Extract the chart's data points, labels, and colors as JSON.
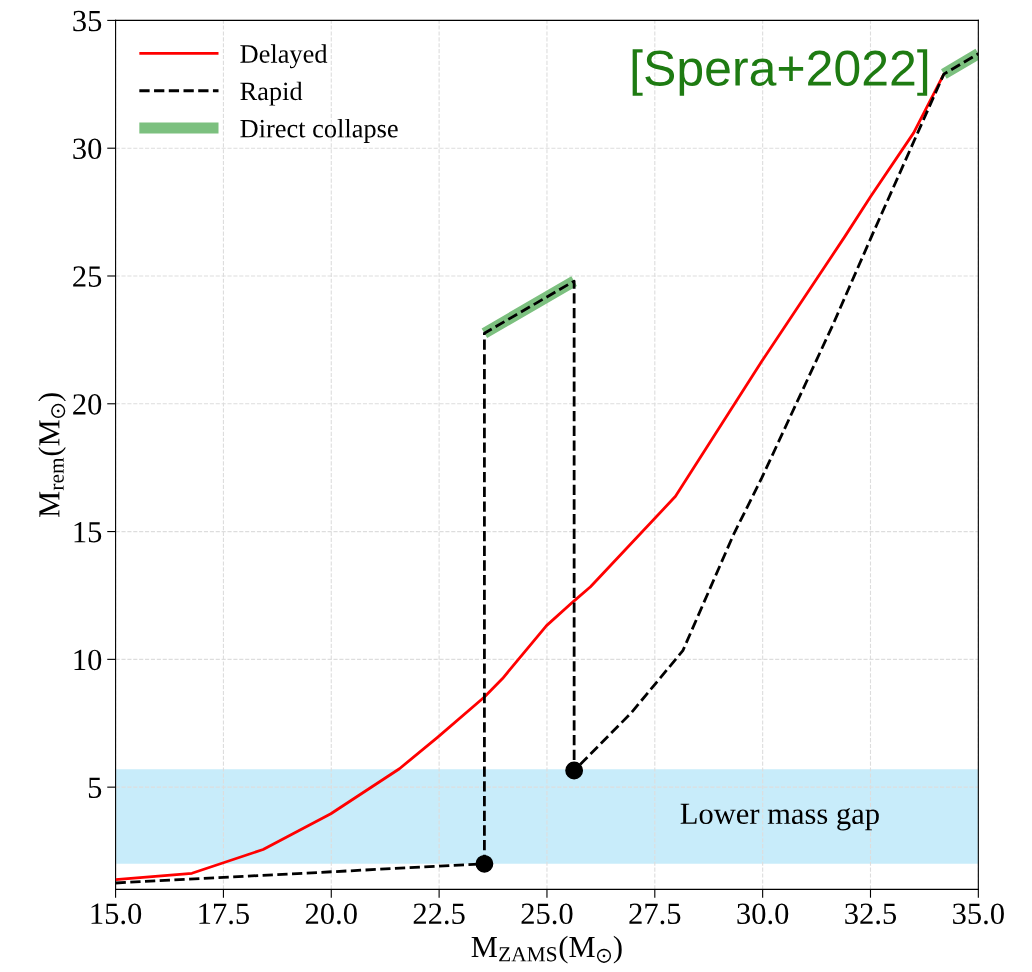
{
  "chart_data": {
    "type": "line",
    "xlabel": "M$_{ZAMS}$(M$_{⊙}$)",
    "ylabel": "M$_{rem}$(M$_{⊙}$)",
    "xlim": [
      15.0,
      35.0
    ],
    "xticks": [
      {
        "value": 15,
        "label": "15.0"
      },
      17.5,
      {
        "value": 20,
        "label": "20.0"
      },
      22.5,
      {
        "value": 25,
        "label": "25.0"
      },
      27.5,
      {
        "value": 30,
        "label": "30.0"
      },
      32.5,
      {
        "value": 35,
        "label": "35.0"
      }
    ],
    "ylim": [
      1,
      35
    ],
    "yticks": [
      5,
      10,
      15,
      20,
      25,
      30,
      35
    ],
    "grid": true,
    "legend": "top left",
    "series": [
      {
        "name": "Delayed",
        "color": "#ff0000",
        "line_style": "solid",
        "x": [
          15,
          16.77,
          18.42,
          19.99,
          21.58,
          22.47,
          23.55,
          23.97,
          24.99,
          25.63,
          26.01,
          27.98,
          29.98,
          31.9,
          32.5,
          33.5,
          34.2
        ],
        "values": [
          1.38,
          1.63,
          2.56,
          3.96,
          5.72,
          6.96,
          8.53,
          9.25,
          11.32,
          12.29,
          12.84,
          16.38,
          21.66,
          26.53,
          28.1,
          30.6,
          32.9
        ]
      },
      {
        "name": "Rapid",
        "color": "#000000",
        "line_style": "dashed",
        "x": [
          15,
          23.55,
          23.55,
          25.63,
          25.63,
          26.95,
          28.15,
          29.33,
          29.98,
          31.62,
          32.52,
          34.2,
          35
        ],
        "values": [
          1.25,
          2.0,
          22.76,
          24.8,
          5.65,
          7.9,
          10.34,
          14.9,
          17.1,
          23.06,
          26.53,
          32.9,
          33.7
        ]
      },
      {
        "name": "Direct collapse",
        "color": "#7cc07f",
        "line_style": "solid",
        "x": [
          23.55,
          25.63,
          30,
          34.2,
          35
        ],
        "values": [
          22.76,
          24.8,
          null,
          32.9,
          33.7
        ]
      },
      {
        "type": "scatter",
        "color": "#000000",
        "marker": "circle",
        "x": [
          23.55,
          25.63
        ],
        "values": [
          2.0,
          5.65
        ]
      }
    ],
    "bands": [
      {
        "axis": "y",
        "from": 2.0,
        "to": 5.7,
        "label": "Lower mass gap",
        "color": "#c8ecfa"
      }
    ],
    "annotations": [
      "[Spera+2022]"
    ]
  }
}
